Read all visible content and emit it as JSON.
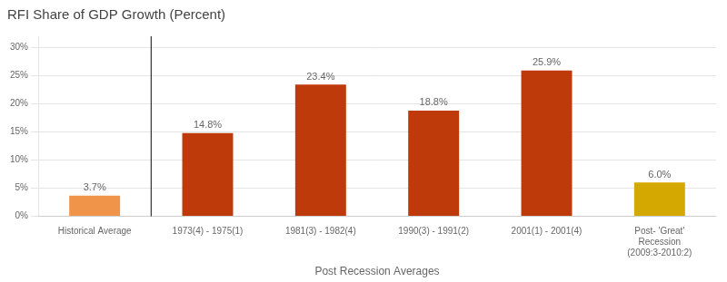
{
  "chart_data": {
    "type": "bar",
    "title": "RFI Share of GDP Growth (Percent)",
    "xlabel": "Post Recession Averages",
    "categories": [
      "Historical Average",
      "1973(4) - 1975(1)",
      "1981(3) - 1982(4)",
      "1990(3) - 1991(2)",
      "2001(1) - 2001(4)",
      "Post- 'Great'\nRecession\n(2009:3-2010:2)"
    ],
    "values": [
      3.7,
      14.8,
      23.4,
      18.8,
      25.9,
      6.0
    ],
    "colors": [
      "#f0944a",
      "#bf3a0a",
      "#bf3a0a",
      "#bf3a0a",
      "#bf3a0a",
      "#d4a800"
    ],
    "value_labels": [
      "3.7%",
      "14.8%",
      "23.4%",
      "18.8%",
      "25.9%",
      "6.0%"
    ],
    "data_labels": true,
    "ylim": [
      0,
      32
    ],
    "yticks": [
      {
        "value": 0,
        "label": "0%"
      },
      {
        "value": 5,
        "label": "5%"
      },
      {
        "value": 10,
        "label": "10%"
      },
      {
        "value": 15,
        "label": "15%"
      },
      {
        "value": 20,
        "label": "20%"
      },
      {
        "value": 25,
        "label": "25%"
      },
      {
        "value": 30,
        "label": "30%"
      }
    ],
    "grid": true
  }
}
